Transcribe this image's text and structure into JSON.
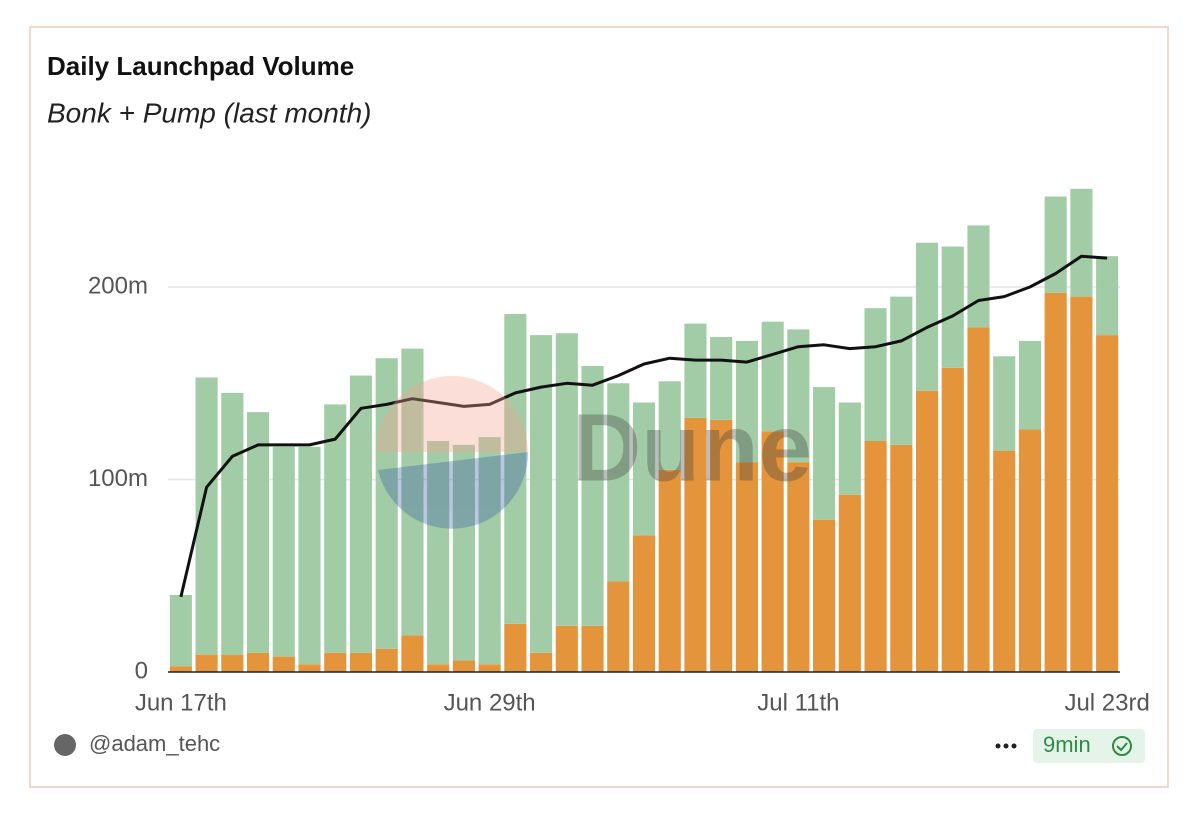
{
  "chart_data": {
    "type": "stacked-bar-line",
    "title": "Daily Launchpad Volume",
    "subtitle": "Bonk + Pump (last month)",
    "categories": [
      "Jun 17th",
      null,
      null,
      null,
      null,
      null,
      null,
      null,
      null,
      null,
      null,
      null,
      "Jun 29th",
      null,
      null,
      null,
      null,
      null,
      null,
      null,
      null,
      null,
      null,
      null,
      "Jul 11th",
      null,
      null,
      null,
      null,
      null,
      null,
      null,
      null,
      null,
      null,
      null,
      "Jul 23rd"
    ],
    "series": [
      {
        "color": "#e4943a",
        "values": [
          3,
          9,
          9,
          10,
          8,
          4,
          10,
          10,
          12,
          19,
          4,
          6,
          4,
          25,
          10,
          24,
          24,
          47,
          71,
          105,
          132,
          131,
          109,
          125,
          109,
          79,
          92,
          120,
          118,
          146,
          158,
          179,
          115,
          126,
          197,
          195,
          175
        ]
      },
      {
        "color": "#a2cca6",
        "values": [
          37,
          144,
          136,
          125,
          109,
          113,
          129,
          144,
          151,
          149,
          116,
          112,
          118,
          161,
          165,
          152,
          135,
          103,
          69,
          46,
          49,
          43,
          63,
          57,
          69,
          69,
          48,
          69,
          77,
          77,
          63,
          53,
          49,
          46,
          50,
          56,
          41
        ]
      },
      {
        "type": "line",
        "color": "#111111",
        "values": [
          39,
          96,
          112,
          118,
          118,
          118,
          121,
          137,
          139,
          142,
          140,
          138,
          139,
          145,
          148,
          150,
          149,
          154,
          160,
          163,
          162,
          162,
          161,
          165,
          169,
          170,
          168,
          169,
          172,
          179,
          185,
          193,
          195,
          200,
          207,
          216,
          215
        ]
      }
    ],
    "ylim": [
      0,
      260
    ],
    "yticks": [
      0,
      {
        "value": 100,
        "label": "100m"
      },
      {
        "value": 200,
        "label": "200m"
      }
    ],
    "grid": true,
    "watermark": "Dune",
    "author": "@adam_tehc",
    "refreshed": "9min"
  }
}
